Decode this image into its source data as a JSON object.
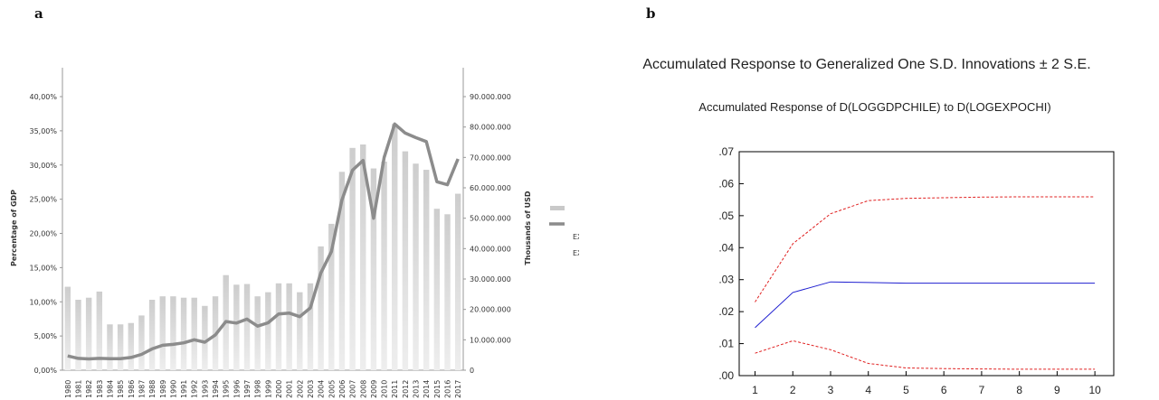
{
  "panels": {
    "a": "a",
    "b": "b"
  },
  "colors": {
    "bar": "#c4c4c4",
    "line": "#8c8c8c",
    "response": "#1f1fd0",
    "band": "#e02020"
  },
  "chart_data": [
    {
      "type": "bar",
      "title": "",
      "ylabel": "Percentage of GDP",
      "y2label": "Thousands of USD",
      "ylim": [
        0,
        40
      ],
      "y2lim": [
        0,
        90000000
      ],
      "yticks": [
        "0,00%",
        "5,00%",
        "10,00%",
        "15,00%",
        "20,00%",
        "25,00%",
        "30,00%",
        "35,00%",
        "40,00%"
      ],
      "y2ticks": [
        "0",
        "10.000.000",
        "20.000.000",
        "30.000.000",
        "40.000.000",
        "50.000.000",
        "60.000.000",
        "70.000.000",
        "80.000.000",
        "90.000.000"
      ],
      "categories": [
        "1980",
        "1981",
        "1982",
        "1983",
        "1984",
        "1985",
        "1986",
        "1987",
        "1988",
        "1989",
        "1990",
        "1991",
        "1992",
        "1993",
        "1994",
        "1995",
        "1996",
        "1997",
        "1998",
        "1999",
        "2000",
        "2001",
        "2002",
        "2003",
        "2004",
        "2005",
        "2006",
        "2007",
        "2008",
        "2009",
        "2010",
        "2011",
        "2012",
        "2013",
        "2014",
        "2015",
        "2016",
        "2017"
      ],
      "legend": [
        "EXP AS% OF GDP",
        "EXPO (thousands of USD)"
      ],
      "legend_position": "right",
      "series": [
        {
          "name": "EXP AS% OF GDP",
          "axis": "left",
          "type": "bar",
          "values": [
            12.2,
            10.3,
            10.6,
            11.5,
            6.7,
            6.7,
            6.9,
            8.0,
            10.3,
            10.8,
            10.8,
            10.6,
            10.6,
            9.4,
            10.8,
            13.9,
            12.5,
            12.6,
            10.8,
            11.4,
            12.7,
            12.7,
            11.4,
            12.7,
            18.1,
            21.4,
            29.0,
            32.5,
            33.0,
            29.5,
            30.5,
            36.0,
            32.0,
            30.2,
            29.3,
            23.6,
            22.8,
            25.8
          ]
        },
        {
          "name": "EXPO (thousands of USD)",
          "axis": "right",
          "type": "line",
          "values": [
            4700000,
            3900000,
            3700000,
            3900000,
            3800000,
            3800000,
            4200000,
            5200000,
            7000000,
            8200000,
            8500000,
            9000000,
            10000000,
            9200000,
            11600000,
            16000000,
            15500000,
            16800000,
            14500000,
            15600000,
            18500000,
            18800000,
            17600000,
            20500000,
            32000000,
            39000000,
            56000000,
            65800000,
            69000000,
            50000000,
            70000000,
            81000000,
            78000000,
            76500000,
            75200000,
            62000000,
            61000000,
            69500000
          ]
        }
      ]
    },
    {
      "type": "line",
      "suptitle": "Accumulated Response to Generalized One S.D. Innovations ± 2 S.E.",
      "title": "Accumulated Response of D(LOGGDPCHILE) to D(LOGEXPOCHI)",
      "x": [
        1,
        2,
        3,
        4,
        5,
        6,
        7,
        8,
        9,
        10
      ],
      "ylim": [
        0,
        0.07
      ],
      "yticks": [
        ".00",
        ".01",
        ".02",
        ".03",
        ".04",
        ".05",
        ".06",
        ".07"
      ],
      "grid": false,
      "series": [
        {
          "style": "solid",
          "values": [
            0.015,
            0.026,
            0.0293,
            0.0291,
            0.0289,
            0.0289,
            0.0289,
            0.0289,
            0.0289,
            0.0289
          ]
        },
        {
          "style": "dashed",
          "values": [
            0.023,
            0.0412,
            0.0506,
            0.0547,
            0.0554,
            0.0556,
            0.0558,
            0.0559,
            0.0559,
            0.0559
          ]
        },
        {
          "style": "dashed",
          "values": [
            0.007,
            0.0109,
            0.0081,
            0.0038,
            0.0024,
            0.0022,
            0.0021,
            0.002,
            0.002,
            0.002
          ]
        }
      ]
    }
  ]
}
